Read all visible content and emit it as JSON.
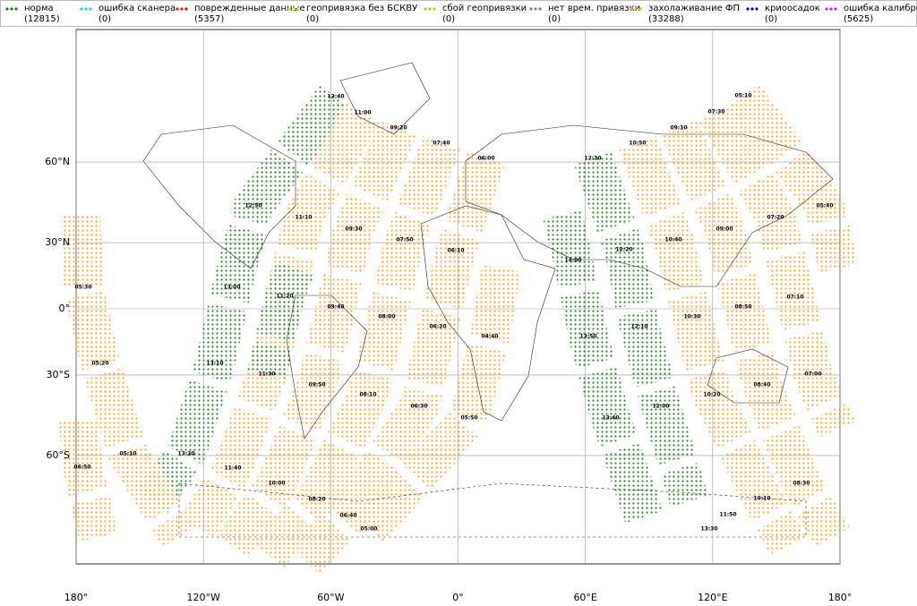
{
  "legend": [
    {
      "label": "норма",
      "count": "(12815)",
      "color": "#1f7a1f"
    },
    {
      "label": "ошибка сканера",
      "count": "(0)",
      "color": "#22d3e6"
    },
    {
      "label": "поврежденные данные",
      "count": "(5357)",
      "color": "#e01818"
    },
    {
      "label": "геопривязка без БСКВУ",
      "count": "(0)",
      "color": "#f2ee3a"
    },
    {
      "label": "сбой геопривязки",
      "count": "(0)",
      "color": "#a6d31f"
    },
    {
      "label": "нет врем. привязки",
      "count": "(0)",
      "color": "#808080"
    },
    {
      "label": "захолаживание ФП",
      "count": "(33288)",
      "color": "#f5a21c"
    },
    {
      "label": "криоосадок",
      "count": "(0)",
      "color": "#0a0a8a"
    },
    {
      "label": "ошибка калибровки",
      "count": "(5625)",
      "color": "#d21fd2"
    }
  ],
  "map": {
    "lon_ticks": [
      {
        "value": -180,
        "label": "180°"
      },
      {
        "value": -120,
        "label": "120°W"
      },
      {
        "value": -60,
        "label": "60°W"
      },
      {
        "value": 0,
        "label": "0°"
      },
      {
        "value": 60,
        "label": "60°E"
      },
      {
        "value": 120,
        "label": "120°E"
      },
      {
        "value": 180,
        "label": "180°"
      }
    ],
    "lat_ticks": [
      {
        "value": 60,
        "label": "60°N"
      },
      {
        "value": 30,
        "label": "30°N"
      },
      {
        "value": 0,
        "label": "0°"
      },
      {
        "value": -30,
        "label": "30°S"
      },
      {
        "value": -60,
        "label": "60°S"
      }
    ],
    "time_labels": [
      "12:40",
      "11:00",
      "09:20",
      "07:40",
      "06:00",
      "12:50",
      "11:10",
      "09:30",
      "07:50",
      "06:10",
      "13:00",
      "11:20",
      "09:40",
      "08:00",
      "06:20",
      "04:40",
      "05:30",
      "13:10",
      "11:30",
      "09:50",
      "08:10",
      "06:30",
      "05:50",
      "05:20",
      "13:20",
      "11:40",
      "10:00",
      "08:20",
      "06:40",
      "05:00",
      "06:50",
      "05:10",
      "05:10",
      "07:30",
      "09:10",
      "10:50",
      "12:30",
      "14:00",
      "12:20",
      "10:40",
      "09:00",
      "07:20",
      "05:40",
      "13:50",
      "12:10",
      "10:30",
      "08:50",
      "07:10",
      "13:40",
      "12:00",
      "10:20",
      "08:40",
      "07:00",
      "10:10",
      "08:30",
      "11:50",
      "13:30"
    ]
  }
}
